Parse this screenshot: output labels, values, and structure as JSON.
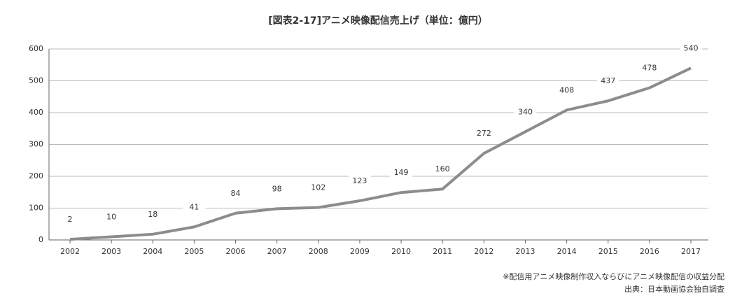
{
  "chart_data": {
    "type": "line",
    "title": "[図表2-17]アニメ映像配信売上げ（単位：億円）",
    "categories": [
      "2002",
      "2003",
      "2004",
      "2005",
      "2006",
      "2007",
      "2008",
      "2009",
      "2010",
      "2011",
      "2012",
      "2013",
      "2014",
      "2015",
      "2016",
      "2017"
    ],
    "series": [
      {
        "name": "アニメ映像配信売上げ",
        "color": "#8c8c8c",
        "values": [
          2,
          10,
          18,
          41,
          84,
          98,
          102,
          123,
          149,
          160,
          272,
          340,
          408,
          437,
          478,
          540
        ]
      }
    ],
    "ylim": [
      0,
      600
    ],
    "yticks": [
      0,
      100,
      200,
      300,
      400,
      500,
      600
    ],
    "grid": true,
    "notes": [
      "※配信用アニメ映像制作収入ならびにアニメ映像配信の収益分配",
      "出典：日本動画協会独自調査"
    ]
  }
}
